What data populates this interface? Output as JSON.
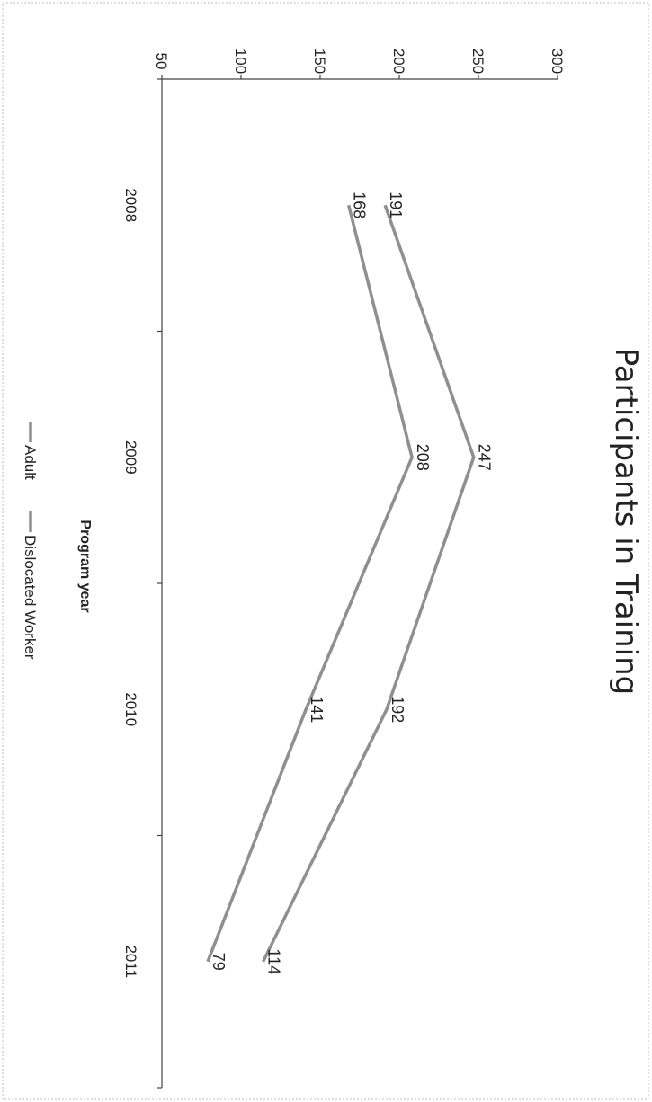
{
  "chart_data": {
    "type": "line",
    "title": "Participants in Training",
    "xlabel": "Program year",
    "ylabel": "",
    "categories": [
      "2008",
      "2009",
      "2010",
      "2011"
    ],
    "y_ticks": [
      "50",
      "100",
      "150",
      "200",
      "250",
      "300"
    ],
    "ylim": [
      50,
      300
    ],
    "series": [
      {
        "name": "Adult",
        "values": [
          191,
          247,
          192,
          114
        ],
        "color": "#8f8f8f"
      },
      {
        "name": "Dislocated Worker",
        "values": [
          168,
          208,
          141,
          79
        ],
        "color": "#8f8f8f"
      }
    ],
    "data_labels": [
      [
        "191",
        "247",
        "192",
        "114"
      ],
      [
        "168",
        "208",
        "141",
        "79"
      ]
    ],
    "legend": [
      {
        "label": "Adult"
      },
      {
        "label": "Dislocated Worker"
      }
    ],
    "legend_position": "bottom",
    "grid": false,
    "orientation": "rotated 90° clockwise on page"
  }
}
